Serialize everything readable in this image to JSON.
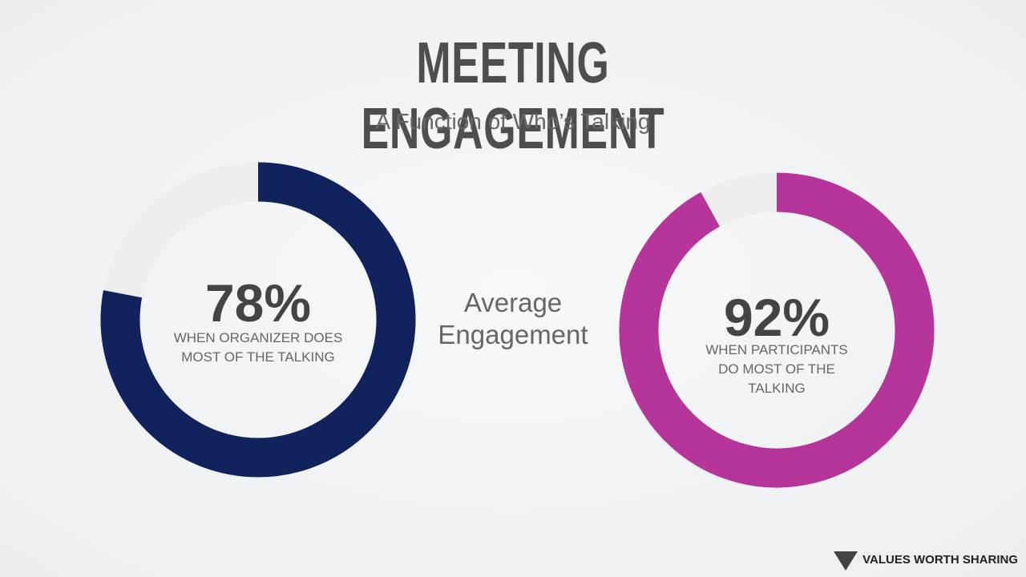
{
  "header": {
    "title": "MEETING ENGAGEMENT",
    "subtitle": "A Function of Who’s Talking"
  },
  "center_label": "Average Engagement",
  "footer": {
    "brand": "VALUES WORTH SHARING"
  },
  "chart_data": [
    {
      "type": "donut",
      "values": [
        78
      ],
      "value_labels": [
        "78%"
      ],
      "ylim": [
        0,
        100
      ],
      "caption": "WHEN ORGANIZER DOES MOST OF THE TALKING",
      "color": "#10235c",
      "track_color": "#eeeeee"
    },
    {
      "type": "donut",
      "values": [
        92
      ],
      "value_labels": [
        "92%"
      ],
      "ylim": [
        0,
        100
      ],
      "caption": "WHEN PARTICIPANTS DO MOST OF THE TALKING",
      "color": "#b5359a",
      "track_color": "#eeeeee"
    }
  ]
}
